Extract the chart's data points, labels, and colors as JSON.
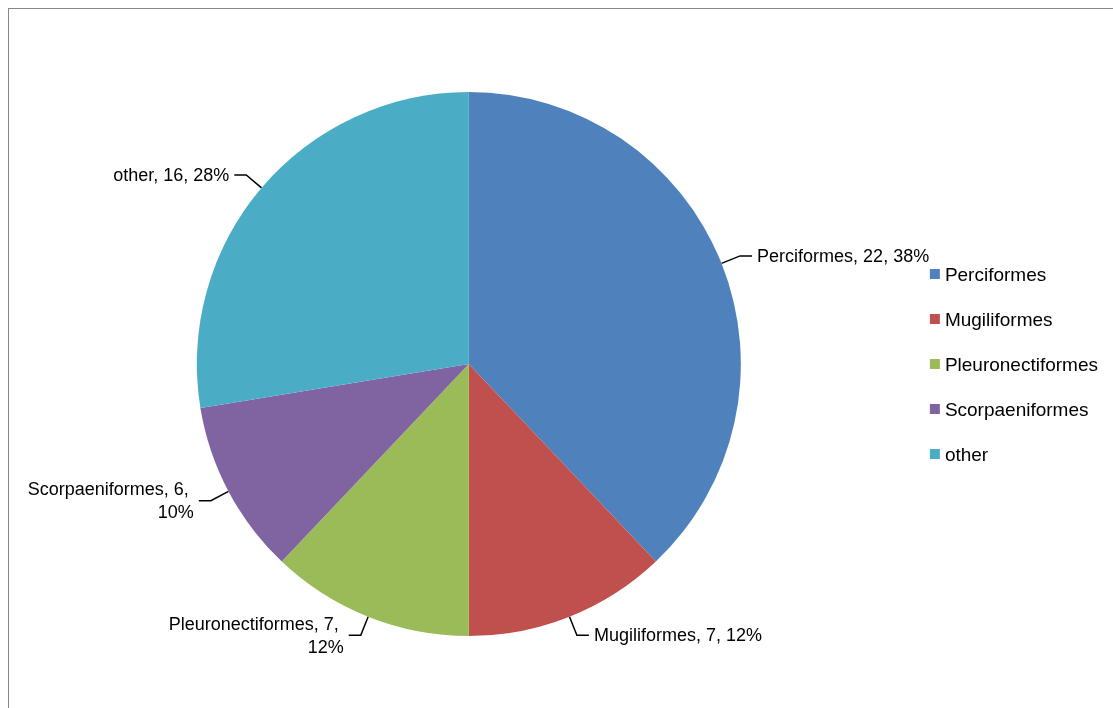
{
  "chart_data": {
    "type": "pie",
    "categories": [
      "Perciformes",
      "Mugiliformes",
      "Pleuronectiformes",
      "Scorpaeniformes",
      "other"
    ],
    "values": [
      22,
      7,
      7,
      6,
      16
    ],
    "value_labels": [
      "Perciformes, 22, 38%",
      "Mugiliformes, 7, 12%",
      "Pleuronectiformes, 7, 12%",
      "Scorpaeniformes, 6, 10%",
      "other, 16, 28%"
    ],
    "colors": [
      "#4f81bd",
      "#c0504d",
      "#9bbb59",
      "#8064a2",
      "#4bacc6"
    ],
    "legend": "right"
  }
}
